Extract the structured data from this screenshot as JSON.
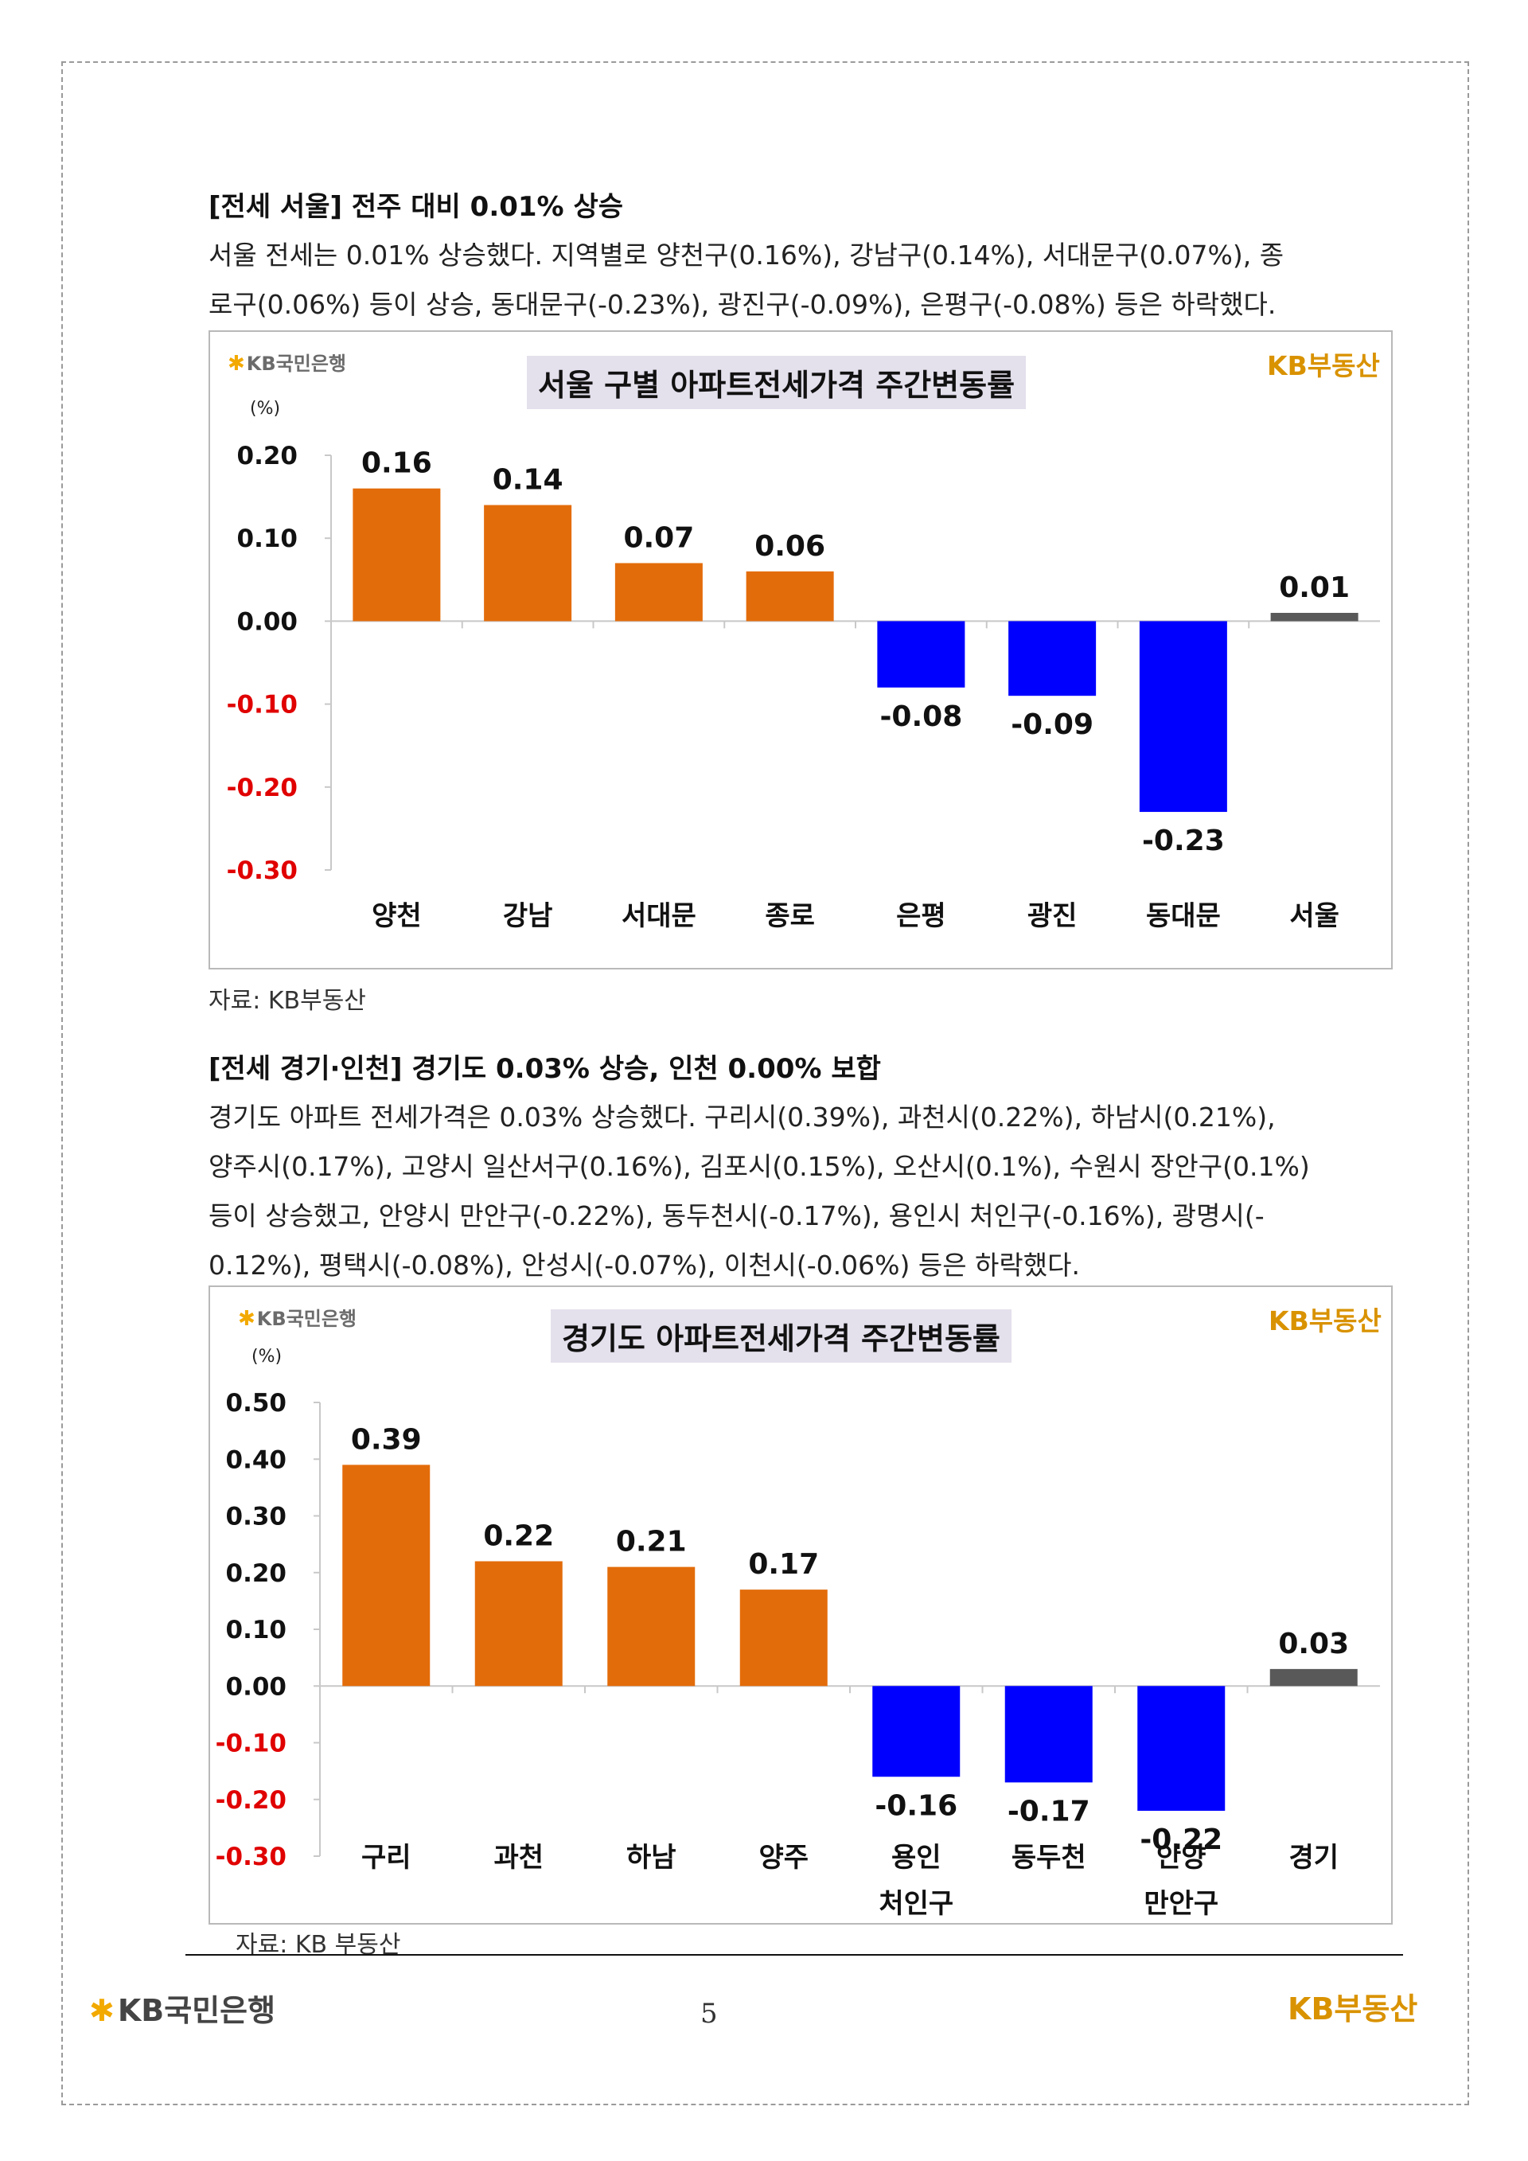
{
  "section1": {
    "heading": "[전세 서울] 전주 대비 0.01% 상승",
    "lines": [
      "서울 전세는 0.01% 상승했다. 지역별로 양천구(0.16%), 강남구(0.14%), 서대문구(0.07%), 종",
      "로구(0.06%) 등이 상승, 동대문구(-0.23%), 광진구(-0.09%), 은평구(-0.08%) 등은 하락했다."
    ],
    "source": "자료: KB부동산"
  },
  "section2": {
    "heading": "[전세 경기·인천] 경기도 0.03% 상승, 인천 0.00% 보합",
    "lines": [
      "경기도 아파트 전세가격은 0.03% 상승했다. 구리시(0.39%), 과천시(0.22%), 하남시(0.21%),",
      "양주시(0.17%), 고양시 일산서구(0.16%), 김포시(0.15%), 오산시(0.1%), 수원시 장안구(0.1%)",
      "등이 상승했고, 안양시 만안구(-0.22%), 동두천시(-0.17%), 용인시 처인구(-0.16%), 광명시(-",
      "0.12%), 평택시(-0.08%), 안성시(-0.07%), 이천시(-0.06%) 등은 하락했다."
    ],
    "source": "자료: KB 부동산"
  },
  "logos": {
    "kb_bank": "KB국민은행",
    "kb_land": "KB부동산"
  },
  "footer": {
    "bank": "KB국민은행",
    "land": "KB부동산",
    "page_number": "5"
  },
  "colors": {
    "positive": "#e36c0a",
    "negative": "#0000ff",
    "total": "#595959",
    "negative_tick": "#e00000",
    "title_bg": "#e4e0ec"
  },
  "chart_data": [
    {
      "type": "bar",
      "title": "서울 구별 아파트전세가격 주간변동률",
      "unit": "(%)",
      "categories": [
        "양천",
        "강남",
        "서대문",
        "종로",
        "은평",
        "광진",
        "동대문",
        "서울"
      ],
      "values": [
        0.16,
        0.14,
        0.07,
        0.06,
        -0.08,
        -0.09,
        -0.23,
        0.01
      ],
      "value_labels": [
        "0.16",
        "0.14",
        "0.07",
        "0.06",
        "-0.08",
        "-0.09",
        "-0.23",
        "0.01"
      ],
      "yticks": [
        "0.20",
        "0.10",
        "0.00",
        "-0.10",
        "-0.20",
        "-0.30"
      ],
      "ylim": [
        -0.3,
        0.2
      ],
      "highlight_last": true
    },
    {
      "type": "bar",
      "title": "경기도 아파트전세가격 주간변동률",
      "unit": "(%)",
      "categories": [
        "구리",
        "과천",
        "하남",
        "양주",
        "용인\n처인구",
        "동두천",
        "안양\n만안구",
        "경기"
      ],
      "values": [
        0.39,
        0.22,
        0.21,
        0.17,
        -0.16,
        -0.17,
        -0.22,
        0.03
      ],
      "value_labels": [
        "0.39",
        "0.22",
        "0.21",
        "0.17",
        "-0.16",
        "-0.17",
        "-0.22",
        "0.03"
      ],
      "yticks": [
        "0.50",
        "0.40",
        "0.30",
        "0.20",
        "0.10",
        "0.00",
        "-0.10",
        "-0.20",
        "-0.30"
      ],
      "ylim": [
        -0.3,
        0.5
      ],
      "highlight_last": true
    }
  ]
}
